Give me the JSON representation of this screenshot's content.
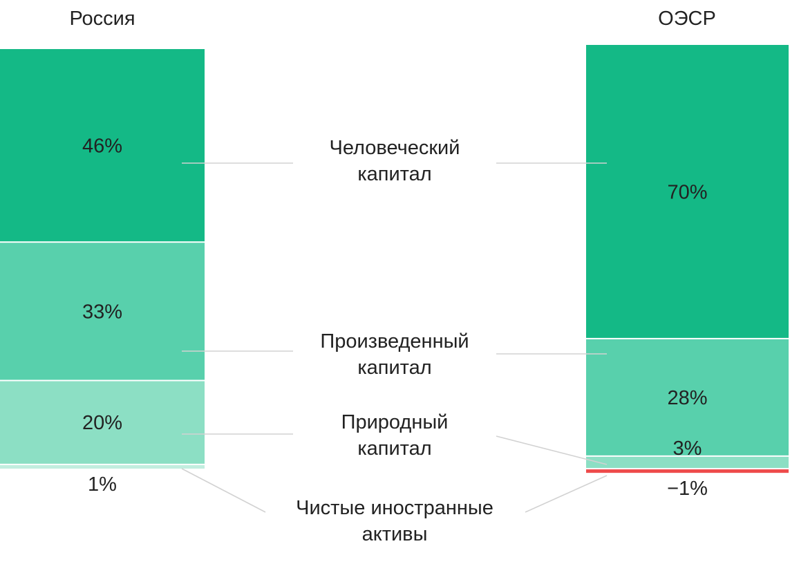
{
  "chart_data": {
    "type": "bar",
    "stacked": true,
    "orientation": "vertical",
    "unit": "%",
    "grid": false,
    "legend": "center, between bars",
    "categories": [
      "Россия",
      "ОЭСР"
    ],
    "series": [
      {
        "name": "Человеческий капитал",
        "label_lines": [
          "Человеческий",
          "капитал"
        ],
        "values": [
          46,
          70
        ],
        "value_labels": [
          "46%",
          "70%"
        ],
        "color": "#14b986"
      },
      {
        "name": "Произведенный капитал",
        "label_lines": [
          "Произведенный",
          "капитал"
        ],
        "values": [
          33,
          28
        ],
        "value_labels": [
          "33%",
          "28%"
        ],
        "color": "#58d0ac"
      },
      {
        "name": "Природный капитал",
        "label_lines": [
          "Природный",
          "капитал"
        ],
        "values": [
          20,
          3
        ],
        "value_labels": [
          "20%",
          "3%"
        ],
        "color": "#8cdfc4"
      },
      {
        "name": "Чистые иностранные активы",
        "label_lines": [
          "Чистые иностранные",
          "активы"
        ],
        "values": [
          1,
          -1
        ],
        "value_labels": [
          "1%",
          "−1%"
        ],
        "color": "#c2eedf",
        "negative_color": "#ee4b4b"
      }
    ]
  }
}
